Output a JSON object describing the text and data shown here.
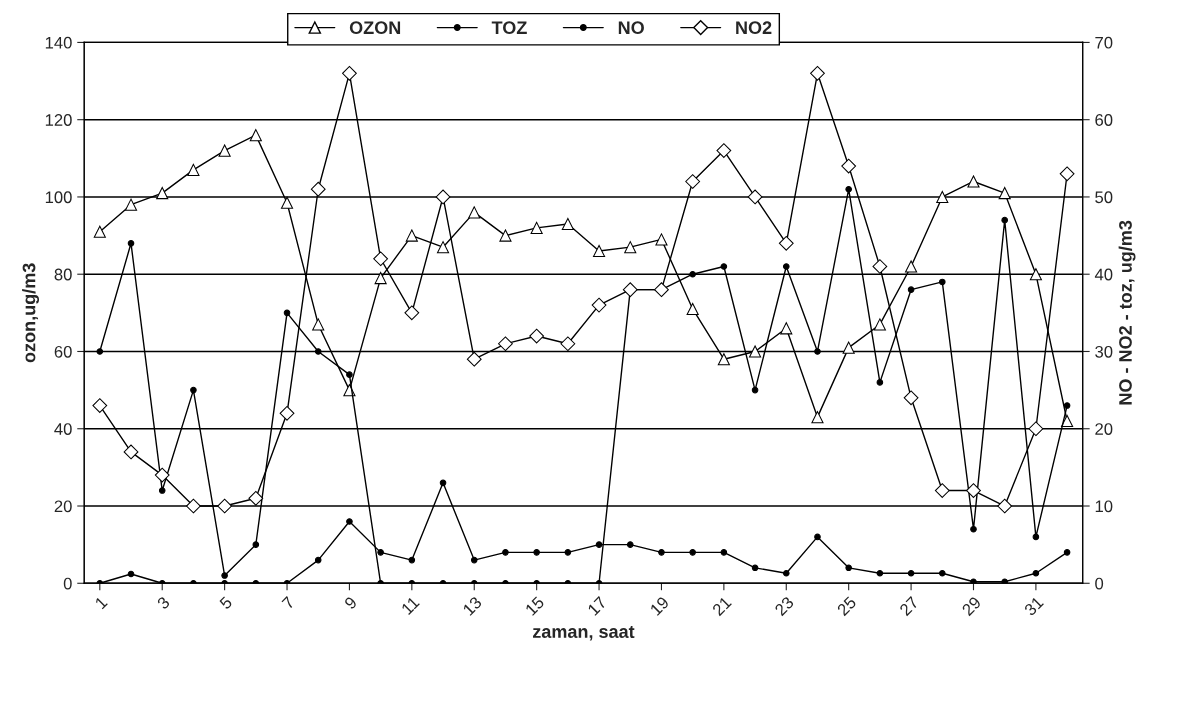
{
  "chart_data": {
    "type": "line",
    "xlabel": "zaman, saat",
    "ylabel": "ozon,ug/m3",
    "y2label": "NO - NO2 - toz, ug/m3",
    "categories": [
      "1",
      null,
      "3",
      null,
      "5",
      null,
      "7",
      null,
      "9",
      null,
      "11",
      null,
      "13",
      null,
      "15",
      null,
      "17",
      null,
      "19",
      null,
      "21",
      null,
      "23",
      null,
      "25",
      null,
      "27",
      null,
      "29",
      null,
      "31",
      null
    ],
    "series": [
      {
        "name": "OZON",
        "color": "#000000",
        "marker": "triangle",
        "values": [
          91,
          98,
          101,
          107,
          112,
          116,
          98.5,
          67,
          50,
          79,
          90,
          87,
          96,
          90,
          92,
          93,
          86,
          87,
          89,
          71,
          58,
          60,
          66,
          43,
          61,
          67,
          82,
          100,
          104,
          101,
          80,
          42
        ]
      },
      {
        "name": "TOZ",
        "color": "#000000",
        "marker": "circle",
        "axis": "y2",
        "values": [
          30,
          44,
          12,
          25,
          1,
          5,
          35,
          30,
          27,
          0,
          0,
          0,
          0,
          0,
          0,
          0,
          0,
          38,
          38,
          40,
          41,
          25,
          41,
          30,
          51,
          26,
          38,
          39,
          7,
          47,
          6,
          23
        ]
      },
      {
        "name": "NO",
        "color": "#000000",
        "marker": "circle",
        "axis": "y2",
        "values": [
          0,
          1.2,
          0,
          0,
          0,
          0,
          0,
          3,
          8,
          4,
          3,
          13,
          3,
          4,
          4,
          4,
          5,
          5,
          4,
          4,
          4,
          2,
          1.3,
          6,
          2,
          1.3,
          1.3,
          1.3,
          0.2,
          0.2,
          1.3,
          4
        ]
      },
      {
        "name": "NO2",
        "color": "#000000",
        "marker": "diamond",
        "axis": "y2",
        "values": [
          23,
          17,
          14,
          10,
          10,
          11,
          22,
          51,
          66,
          42,
          35,
          50,
          29,
          31,
          32,
          31,
          36,
          38,
          38,
          52,
          56,
          50,
          44,
          66,
          54,
          41,
          24,
          12,
          12,
          10,
          20,
          53
        ]
      }
    ],
    "ylim": [
      0,
      140
    ],
    "yticks": [
      0,
      20,
      40,
      60,
      80,
      100,
      120,
      140
    ],
    "y2lim": [
      0,
      70
    ],
    "y2ticks": [
      0,
      10,
      20,
      30,
      40,
      50,
      60,
      70
    ],
    "grid": "y",
    "legend": "top",
    "line_style": "solid"
  }
}
